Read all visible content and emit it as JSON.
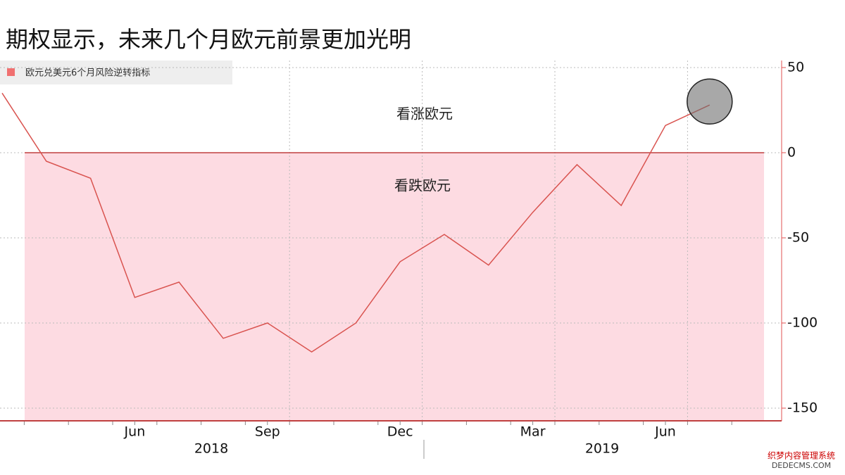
{
  "chart_data": {
    "type": "line",
    "title": "期权显示，未来几个月欧元前景更加光明",
    "legend": "欧元兑美元6个月风险逆转指标",
    "x": [
      "2018-03",
      "2018-04",
      "2018-05",
      "2018-06",
      "2018-07",
      "2018-08",
      "2018-09",
      "2018-10",
      "2018-11",
      "2018-12",
      "2019-01",
      "2019-02",
      "2019-03",
      "2019-04",
      "2019-05",
      "2019-06",
      "2019-07"
    ],
    "series": [
      {
        "name": "欧元兑美元6个月风险逆转指标",
        "color": "#d9534f",
        "values": [
          35,
          -5,
          -15,
          -85,
          -76,
          -109,
          -100,
          -117,
          -100,
          -64,
          -48,
          -66,
          -35,
          -7,
          -31,
          16,
          28
        ]
      }
    ],
    "xticks": [
      {
        "value": "2018-06",
        "label": "Jun"
      },
      {
        "value": "2018-09",
        "label": "Sep"
      },
      {
        "value": "2018-12",
        "label": "Dec"
      },
      {
        "value": "2019-03",
        "label": "Mar"
      },
      {
        "value": "2019-06",
        "label": "Jun"
      }
    ],
    "years": [
      "2018",
      "2019"
    ],
    "ylim": [
      -155,
      55
    ],
    "yticks": [
      50,
      0,
      -50,
      -100,
      -150
    ],
    "annotations": [
      "看涨欧元",
      "看跌欧元"
    ],
    "watermark": [
      "织梦内容管理系统",
      "DEDECMS.COM"
    ],
    "grid": true
  }
}
